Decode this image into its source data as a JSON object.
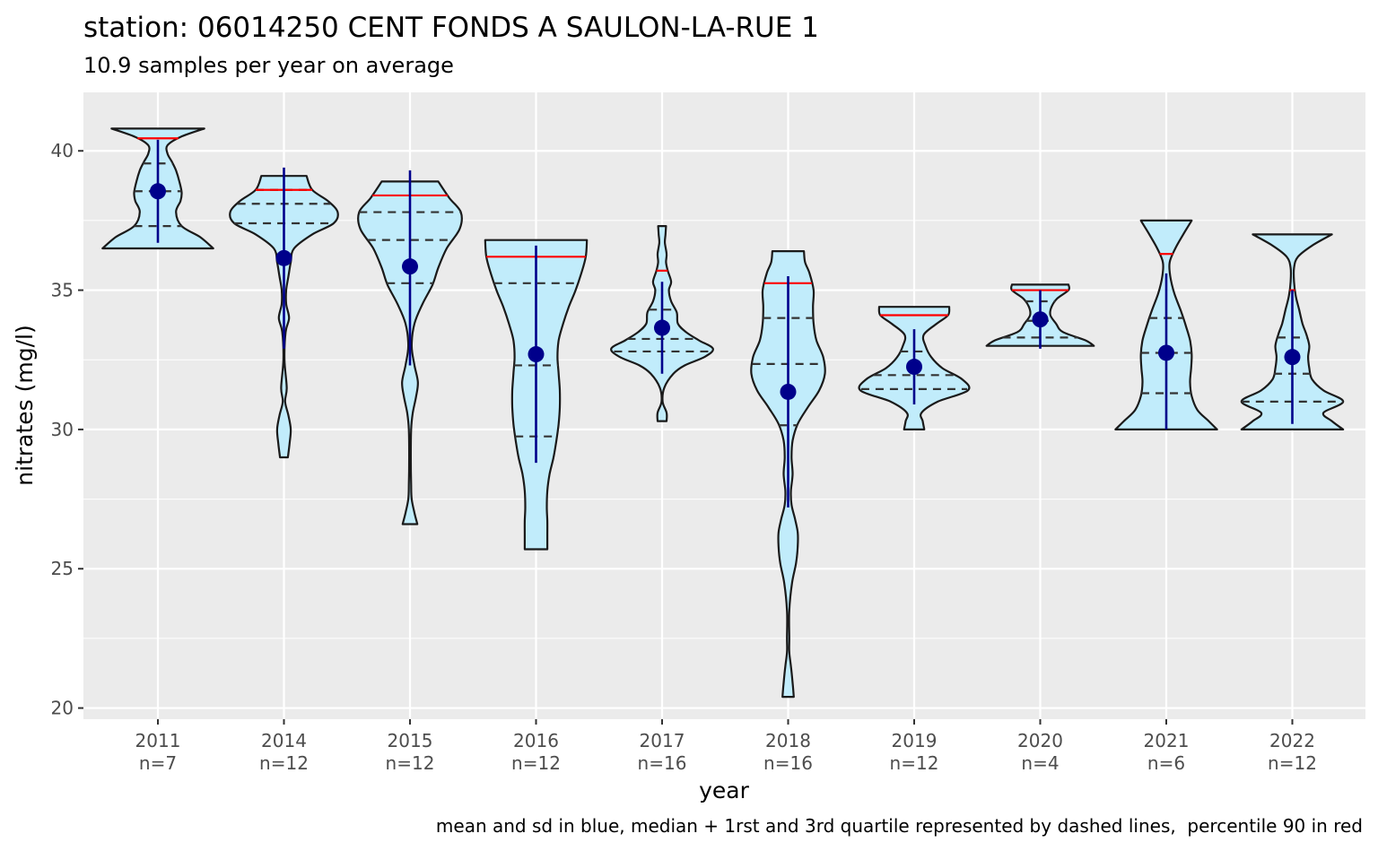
{
  "chart_data": {
    "type": "violin",
    "title": "station: 06014250 CENT FONDS A SAULON-LA-RUE 1",
    "subtitle": "10.9 samples per year on average",
    "xlabel": "year",
    "ylabel": "nitrates (mg/l)",
    "caption": "mean and sd in blue, median + 1rst and 3rd quartile represented by dashed lines,  percentile 90 in red",
    "ylim": [
      19.6,
      42.1
    ],
    "yticks": [
      20,
      25,
      30,
      35,
      40
    ],
    "grid": true,
    "colors": {
      "panel": "#ebebeb",
      "grid": "#ffffff",
      "violin_fill": "#c1ecfb",
      "violin_outline": "#1a1a1a",
      "mean_sd": "#00008b",
      "quartiles": "#333333",
      "percentile90": "#ff0000"
    },
    "categories": [
      {
        "year": "2011",
        "n": "n=7",
        "min": 36.5,
        "max": 40.8,
        "q1": 37.3,
        "median": 38.55,
        "q3": 39.55,
        "p90": 40.45,
        "mean": 38.55,
        "sd_low": 36.7,
        "sd_high": 40.4,
        "profile": [
          [
            36.5,
            0.98
          ],
          [
            36.9,
            0.75
          ],
          [
            37.3,
            0.42
          ],
          [
            37.8,
            0.32
          ],
          [
            38.2,
            0.4
          ],
          [
            38.5,
            0.42
          ],
          [
            38.9,
            0.38
          ],
          [
            39.3,
            0.32
          ],
          [
            39.6,
            0.25
          ],
          [
            39.9,
            0.17
          ],
          [
            40.2,
            0.17
          ],
          [
            40.5,
            0.4
          ],
          [
            40.8,
            0.82
          ]
        ]
      },
      {
        "year": "2014",
        "n": "n=12",
        "min": 29.0,
        "max": 39.1,
        "q1": 37.4,
        "median": 38.1,
        "q3": 38.6,
        "p90": 38.6,
        "mean": 36.15,
        "sd_low": 32.9,
        "sd_high": 39.4,
        "profile": [
          [
            29.0,
            0.07
          ],
          [
            29.5,
            0.1
          ],
          [
            30.0,
            0.12
          ],
          [
            30.5,
            0.08
          ],
          [
            31.0,
            0.02
          ],
          [
            31.5,
            0.05
          ],
          [
            32.5,
            0.01
          ],
          [
            33.5,
            0.03
          ],
          [
            34.0,
            0.09
          ],
          [
            34.5,
            0.04
          ],
          [
            35.0,
            0.04
          ],
          [
            35.5,
            0.08
          ],
          [
            36.0,
            0.12
          ],
          [
            36.5,
            0.18
          ],
          [
            37.0,
            0.5
          ],
          [
            37.4,
            0.88
          ],
          [
            37.8,
            0.95
          ],
          [
            38.2,
            0.78
          ],
          [
            38.6,
            0.5
          ],
          [
            39.1,
            0.4
          ]
        ]
      },
      {
        "year": "2015",
        "n": "n=12",
        "min": 26.6,
        "max": 38.9,
        "q1": 35.25,
        "median": 36.8,
        "q3": 37.8,
        "p90": 38.4,
        "mean": 35.85,
        "sd_low": 32.3,
        "sd_high": 39.3,
        "profile": [
          [
            26.6,
            0.13
          ],
          [
            27.0,
            0.08
          ],
          [
            27.5,
            0.03
          ],
          [
            28.0,
            0.02
          ],
          [
            29.0,
            0.015
          ],
          [
            30.0,
            0.02
          ],
          [
            30.6,
            0.05
          ],
          [
            31.2,
            0.11
          ],
          [
            31.7,
            0.14
          ],
          [
            32.3,
            0.08
          ],
          [
            33.0,
            0.03
          ],
          [
            33.8,
            0.08
          ],
          [
            34.5,
            0.22
          ],
          [
            35.2,
            0.4
          ],
          [
            35.8,
            0.5
          ],
          [
            36.5,
            0.65
          ],
          [
            37.2,
            0.88
          ],
          [
            37.8,
            0.9
          ],
          [
            38.3,
            0.7
          ],
          [
            38.9,
            0.5
          ]
        ]
      },
      {
        "year": "2016",
        "n": "n=12",
        "min": 25.7,
        "max": 36.8,
        "q1": 29.75,
        "median": 32.3,
        "q3": 35.25,
        "p90": 36.2,
        "mean": 32.7,
        "sd_low": 28.8,
        "sd_high": 36.6,
        "profile": [
          [
            25.7,
            0.2
          ],
          [
            26.2,
            0.2
          ],
          [
            26.7,
            0.2
          ],
          [
            27.2,
            0.19
          ],
          [
            27.8,
            0.2
          ],
          [
            28.4,
            0.24
          ],
          [
            29.0,
            0.31
          ],
          [
            29.6,
            0.36
          ],
          [
            30.2,
            0.4
          ],
          [
            30.8,
            0.42
          ],
          [
            31.4,
            0.42
          ],
          [
            32.0,
            0.4
          ],
          [
            32.6,
            0.38
          ],
          [
            33.2,
            0.4
          ],
          [
            33.8,
            0.48
          ],
          [
            34.4,
            0.58
          ],
          [
            35.0,
            0.7
          ],
          [
            35.6,
            0.8
          ],
          [
            36.2,
            0.88
          ],
          [
            36.8,
            0.9
          ]
        ]
      },
      {
        "year": "2017",
        "n": "n=16",
        "min": 30.3,
        "max": 37.3,
        "q1": 32.8,
        "median": 33.25,
        "q3": 34.3,
        "p90": 35.7,
        "mean": 33.65,
        "sd_low": 32.0,
        "sd_high": 35.3,
        "profile": [
          [
            30.3,
            0.08
          ],
          [
            30.6,
            0.08
          ],
          [
            31.0,
            0.01
          ],
          [
            31.5,
            0.04
          ],
          [
            32.0,
            0.2
          ],
          [
            32.3,
            0.4
          ],
          [
            32.6,
            0.75
          ],
          [
            32.9,
            0.9
          ],
          [
            33.2,
            0.65
          ],
          [
            33.5,
            0.42
          ],
          [
            33.8,
            0.28
          ],
          [
            34.2,
            0.26
          ],
          [
            34.6,
            0.16
          ],
          [
            35.0,
            0.12
          ],
          [
            35.3,
            0.16
          ],
          [
            35.7,
            0.1
          ],
          [
            36.0,
            0.07
          ],
          [
            36.3,
            0.08
          ],
          [
            36.7,
            0.05
          ],
          [
            37.0,
            0.06
          ],
          [
            37.3,
            0.07
          ]
        ]
      },
      {
        "year": "2018",
        "n": "n=16",
        "min": 20.4,
        "max": 36.4,
        "q1": 30.15,
        "median": 32.35,
        "q3": 34.0,
        "p90": 35.25,
        "mean": 31.35,
        "sd_low": 27.2,
        "sd_high": 35.5,
        "profile": [
          [
            20.4,
            0.1
          ],
          [
            20.9,
            0.08
          ],
          [
            21.5,
            0.05
          ],
          [
            22.0,
            0.02
          ],
          [
            22.5,
            0.02
          ],
          [
            23.5,
            0.02
          ],
          [
            24.5,
            0.07
          ],
          [
            25.2,
            0.14
          ],
          [
            25.8,
            0.17
          ],
          [
            26.3,
            0.17
          ],
          [
            26.8,
            0.12
          ],
          [
            27.3,
            0.06
          ],
          [
            27.8,
            0.05
          ],
          [
            28.4,
            0.08
          ],
          [
            29.0,
            0.06
          ],
          [
            29.6,
            0.08
          ],
          [
            30.2,
            0.17
          ],
          [
            30.8,
            0.35
          ],
          [
            31.4,
            0.55
          ],
          [
            32.0,
            0.65
          ],
          [
            32.6,
            0.62
          ],
          [
            33.2,
            0.5
          ],
          [
            33.8,
            0.45
          ],
          [
            34.4,
            0.44
          ],
          [
            35.0,
            0.45
          ],
          [
            35.6,
            0.38
          ],
          [
            36.0,
            0.3
          ],
          [
            36.4,
            0.28
          ]
        ]
      },
      {
        "year": "2019",
        "n": "n=12",
        "min": 30.0,
        "max": 34.4,
        "q1": 31.45,
        "median": 31.95,
        "q3": 32.8,
        "p90": 34.1,
        "mean": 32.25,
        "sd_low": 30.9,
        "sd_high": 33.6,
        "profile": [
          [
            30.0,
            0.18
          ],
          [
            30.3,
            0.15
          ],
          [
            30.6,
            0.13
          ],
          [
            31.0,
            0.42
          ],
          [
            31.4,
            0.95
          ],
          [
            31.8,
            0.85
          ],
          [
            32.2,
            0.5
          ],
          [
            32.6,
            0.3
          ],
          [
            33.0,
            0.2
          ],
          [
            33.4,
            0.17
          ],
          [
            33.8,
            0.4
          ],
          [
            34.1,
            0.6
          ],
          [
            34.4,
            0.62
          ]
        ]
      },
      {
        "year": "2020",
        "n": "n=4",
        "min": 33.0,
        "max": 35.2,
        "q1": 33.3,
        "median": 33.9,
        "q3": 34.6,
        "p90": 35.0,
        "mean": 33.95,
        "sd_low": 32.9,
        "sd_high": 35.0,
        "profile": [
          [
            33.0,
            0.95
          ],
          [
            33.2,
            0.8
          ],
          [
            33.5,
            0.4
          ],
          [
            33.8,
            0.28
          ],
          [
            34.1,
            0.18
          ],
          [
            34.4,
            0.2
          ],
          [
            34.7,
            0.3
          ],
          [
            35.0,
            0.5
          ],
          [
            35.2,
            0.5
          ]
        ]
      },
      {
        "year": "2021",
        "n": "n=6",
        "min": 30.0,
        "max": 37.5,
        "q1": 31.3,
        "median": 32.75,
        "q3": 34.0,
        "p90": 36.3,
        "mean": 32.75,
        "sd_low": 30.0,
        "sd_high": 35.6,
        "profile": [
          [
            30.0,
            0.9
          ],
          [
            30.3,
            0.75
          ],
          [
            30.7,
            0.55
          ],
          [
            31.2,
            0.45
          ],
          [
            31.7,
            0.42
          ],
          [
            32.2,
            0.44
          ],
          [
            32.7,
            0.45
          ],
          [
            33.2,
            0.42
          ],
          [
            33.7,
            0.35
          ],
          [
            34.3,
            0.25
          ],
          [
            34.9,
            0.14
          ],
          [
            35.5,
            0.07
          ],
          [
            36.0,
            0.06
          ],
          [
            36.5,
            0.16
          ],
          [
            37.0,
            0.3
          ],
          [
            37.5,
            0.45
          ]
        ]
      },
      {
        "year": "2022",
        "n": "n=12",
        "min": 30.0,
        "max": 37.0,
        "q1": 31.0,
        "median": 32.0,
        "q3": 33.3,
        "p90": 35.0,
        "mean": 32.6,
        "sd_low": 30.2,
        "sd_high": 35.0,
        "profile": [
          [
            30.0,
            0.9
          ],
          [
            30.3,
            0.7
          ],
          [
            30.6,
            0.55
          ],
          [
            31.0,
            0.9
          ],
          [
            31.4,
            0.55
          ],
          [
            31.8,
            0.35
          ],
          [
            32.2,
            0.3
          ],
          [
            32.6,
            0.28
          ],
          [
            33.0,
            0.3
          ],
          [
            33.4,
            0.25
          ],
          [
            33.8,
            0.18
          ],
          [
            34.3,
            0.12
          ],
          [
            34.8,
            0.06
          ],
          [
            35.3,
            0.03
          ],
          [
            35.8,
            0.03
          ],
          [
            36.2,
            0.1
          ],
          [
            36.6,
            0.35
          ],
          [
            37.0,
            0.7
          ]
        ]
      }
    ]
  }
}
